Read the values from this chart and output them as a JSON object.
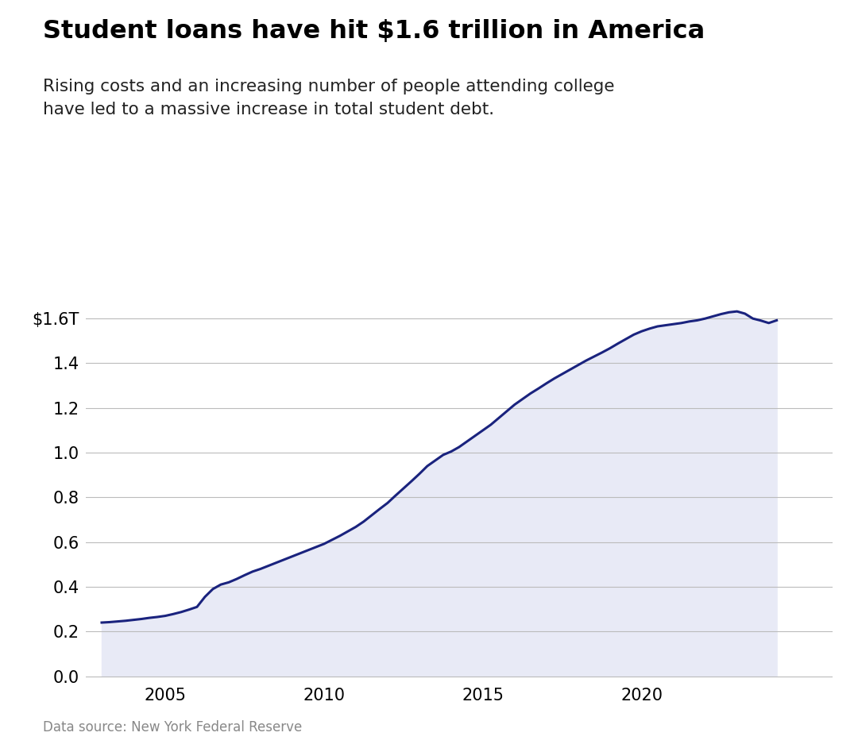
{
  "title": "Student loans have hit $1.6 trillion in America",
  "subtitle": "Rising costs and an increasing number of people attending college\nhave led to a massive increase in total student debt.",
  "data_source": "Data source: New York Federal Reserve",
  "line_color": "#1a237e",
  "fill_color": "#e8eaf6",
  "background_color": "#ffffff",
  "ytick_labels": [
    "0.0",
    "0.2",
    "0.4",
    "0.6",
    "0.8",
    "1.0",
    "1.2",
    "1.4",
    "$1.6T"
  ],
  "ytick_values": [
    0.0,
    0.2,
    0.4,
    0.6,
    0.8,
    1.0,
    1.2,
    1.4,
    1.6
  ],
  "xtick_labels": [
    "2005",
    "2010",
    "2015",
    "2020"
  ],
  "xtick_values": [
    2005,
    2010,
    2015,
    2020
  ],
  "xlim": [
    2002.5,
    2026.0
  ],
  "ylim": [
    -0.02,
    1.72
  ],
  "x": [
    2003.0,
    2003.25,
    2003.5,
    2003.75,
    2004.0,
    2004.25,
    2004.5,
    2004.75,
    2005.0,
    2005.25,
    2005.5,
    2005.75,
    2006.0,
    2006.25,
    2006.5,
    2006.75,
    2007.0,
    2007.25,
    2007.5,
    2007.75,
    2008.0,
    2008.25,
    2008.5,
    2008.75,
    2009.0,
    2009.25,
    2009.5,
    2009.75,
    2010.0,
    2010.25,
    2010.5,
    2010.75,
    2011.0,
    2011.25,
    2011.5,
    2011.75,
    2012.0,
    2012.25,
    2012.5,
    2012.75,
    2013.0,
    2013.25,
    2013.5,
    2013.75,
    2014.0,
    2014.25,
    2014.5,
    2014.75,
    2015.0,
    2015.25,
    2015.5,
    2015.75,
    2016.0,
    2016.25,
    2016.5,
    2016.75,
    2017.0,
    2017.25,
    2017.5,
    2017.75,
    2018.0,
    2018.25,
    2018.5,
    2018.75,
    2019.0,
    2019.25,
    2019.5,
    2019.75,
    2020.0,
    2020.25,
    2020.5,
    2020.75,
    2021.0,
    2021.25,
    2021.5,
    2021.75,
    2022.0,
    2022.25,
    2022.5,
    2022.75,
    2023.0,
    2023.25,
    2023.5,
    2023.75,
    2024.0,
    2024.25
  ],
  "y": [
    0.24,
    0.242,
    0.245,
    0.248,
    0.252,
    0.256,
    0.261,
    0.265,
    0.27,
    0.278,
    0.287,
    0.298,
    0.31,
    0.355,
    0.39,
    0.41,
    0.42,
    0.435,
    0.452,
    0.468,
    0.48,
    0.494,
    0.508,
    0.522,
    0.536,
    0.55,
    0.564,
    0.578,
    0.592,
    0.61,
    0.628,
    0.648,
    0.668,
    0.692,
    0.72,
    0.748,
    0.775,
    0.808,
    0.84,
    0.872,
    0.905,
    0.94,
    0.965,
    0.99,
    1.005,
    1.025,
    1.05,
    1.075,
    1.1,
    1.125,
    1.155,
    1.185,
    1.215,
    1.24,
    1.265,
    1.287,
    1.31,
    1.332,
    1.352,
    1.372,
    1.392,
    1.412,
    1.43,
    1.448,
    1.467,
    1.488,
    1.508,
    1.528,
    1.543,
    1.555,
    1.565,
    1.57,
    1.575,
    1.58,
    1.587,
    1.592,
    1.6,
    1.61,
    1.62,
    1.628,
    1.632,
    1.622,
    1.6,
    1.591,
    1.58,
    1.592
  ]
}
